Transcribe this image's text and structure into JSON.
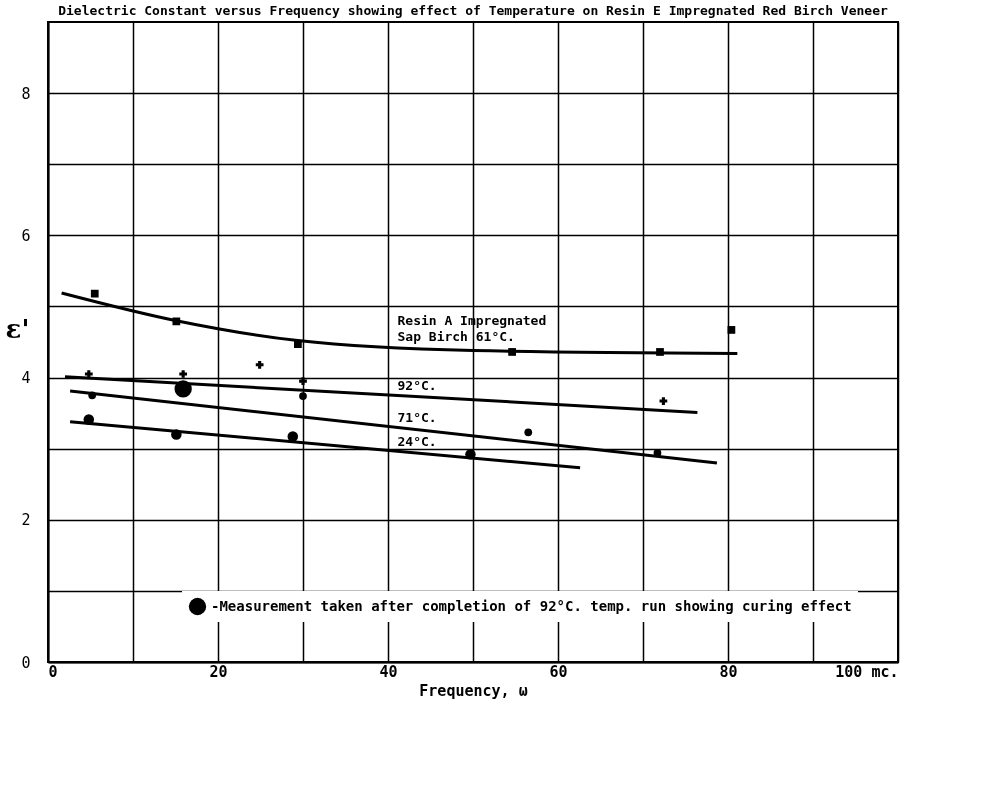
{
  "chart_data": {
    "type": "scatter",
    "title": "Dielectric Constant versus Frequency showing effect of Temperature on Resin E Impregnated Red Birch Veneer",
    "xlabel": "Frequency, ω",
    "ylabel": "ε'",
    "xlim": [
      0,
      100
    ],
    "ylim": [
      0,
      9
    ],
    "xticks": [
      0,
      {
        "value": 10,
        "label": null
      },
      20,
      {
        "value": 30,
        "label": null
      },
      40,
      {
        "value": 50,
        "label": null
      },
      60,
      {
        "value": 70,
        "label": null
      },
      80,
      {
        "value": 90,
        "label": null
      },
      {
        "value": 100,
        "label": "100 mc."
      }
    ],
    "yticks": [
      0,
      {
        "value": 1,
        "label": null
      },
      2,
      {
        "value": 3,
        "label": null
      },
      4,
      {
        "value": 5,
        "label": null
      },
      6,
      {
        "value": 7,
        "label": null
      },
      8
    ],
    "grid": true,
    "legend": "bottom right",
    "series": [
      {
        "marker": "square",
        "color": "#000000",
        "x": [
          5.5,
          15.1,
          29.4,
          54.6,
          72.0,
          80.4
        ],
        "values": [
          5.18,
          4.79,
          4.47,
          4.36,
          4.36,
          4.67
        ]
      },
      {
        "marker": "cross",
        "color": "#000000",
        "x": [
          4.8,
          15.9,
          24.9,
          30.0,
          72.4
        ],
        "values": [
          4.05,
          4.05,
          4.18,
          3.95,
          3.67
        ]
      },
      {
        "marker": "circle",
        "color": "#000000",
        "x": [
          5.2,
          15.9,
          30.0,
          56.5,
          71.7
        ],
        "values": [
          3.75,
          null,
          3.74,
          3.23,
          2.94
        ]
      },
      {
        "marker": "circle",
        "color": "#000000",
        "x": [
          4.8,
          15.1,
          28.8,
          49.7
        ],
        "values": [
          3.41,
          3.2,
          3.17,
          2.92
        ]
      },
      {
        "marker": "circle",
        "name": "-Measurement taken after completion of 92°C. temp. run showing curing effect",
        "color": "#000000",
        "x": [
          15.9
        ],
        "values": [
          3.84
        ]
      },
      {
        "type": "line",
        "name": "Resin A Impregnated Sap Birch 61°C.",
        "color": "#000000",
        "x": [
          1.6,
          15.1,
          29.4,
          50.0,
          81.1
        ],
        "values": [
          5.19,
          4.8,
          4.52,
          4.38,
          4.34
        ]
      },
      {
        "type": "line",
        "name": "92°C.",
        "color": "#000000",
        "x": [
          2.0,
          76.4
        ],
        "values": [
          4.01,
          3.51
        ]
      },
      {
        "type": "line",
        "name": "71°C.",
        "color": "#000000",
        "x": [
          2.6,
          78.7
        ],
        "values": [
          3.81,
          2.8
        ]
      },
      {
        "type": "line",
        "name": "24°C.",
        "color": "#000000",
        "x": [
          2.6,
          62.6
        ],
        "values": [
          3.38,
          2.73
        ]
      }
    ]
  }
}
